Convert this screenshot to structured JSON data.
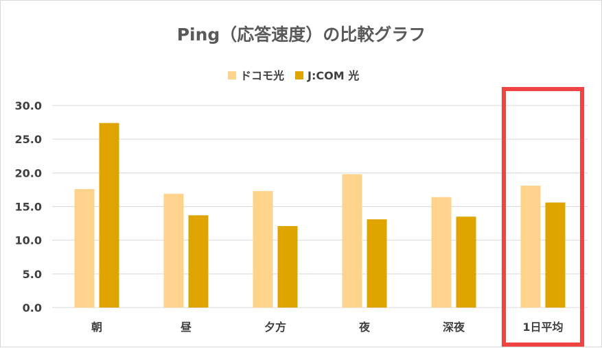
{
  "chart_data": {
    "type": "bar",
    "title": "Ping（応答速度）の比較グラフ",
    "categories": [
      "朝",
      "昼",
      "夕方",
      "夜",
      "深夜",
      "1日平均"
    ],
    "series": [
      {
        "name": "ドコモ光",
        "color": "#FED38B",
        "values": [
          17.6,
          16.9,
          17.3,
          19.8,
          16.4,
          18.1
        ]
      },
      {
        "name": "J:COM 光",
        "color": "#DFA400",
        "values": [
          27.4,
          13.7,
          12.1,
          13.1,
          13.5,
          15.6
        ]
      }
    ],
    "ylim": [
      0,
      30
    ],
    "y_ticks": [
      "0.0",
      "5.0",
      "10.0",
      "15.0",
      "20.0",
      "25.0",
      "30.0"
    ],
    "grid": true,
    "legend_position": "top-center",
    "highlight": {
      "category": "1日平均",
      "color": "#EE4444"
    },
    "colors": {
      "title": "#595959",
      "axis_text": "#404040",
      "grid": "#d9d9d9"
    }
  }
}
